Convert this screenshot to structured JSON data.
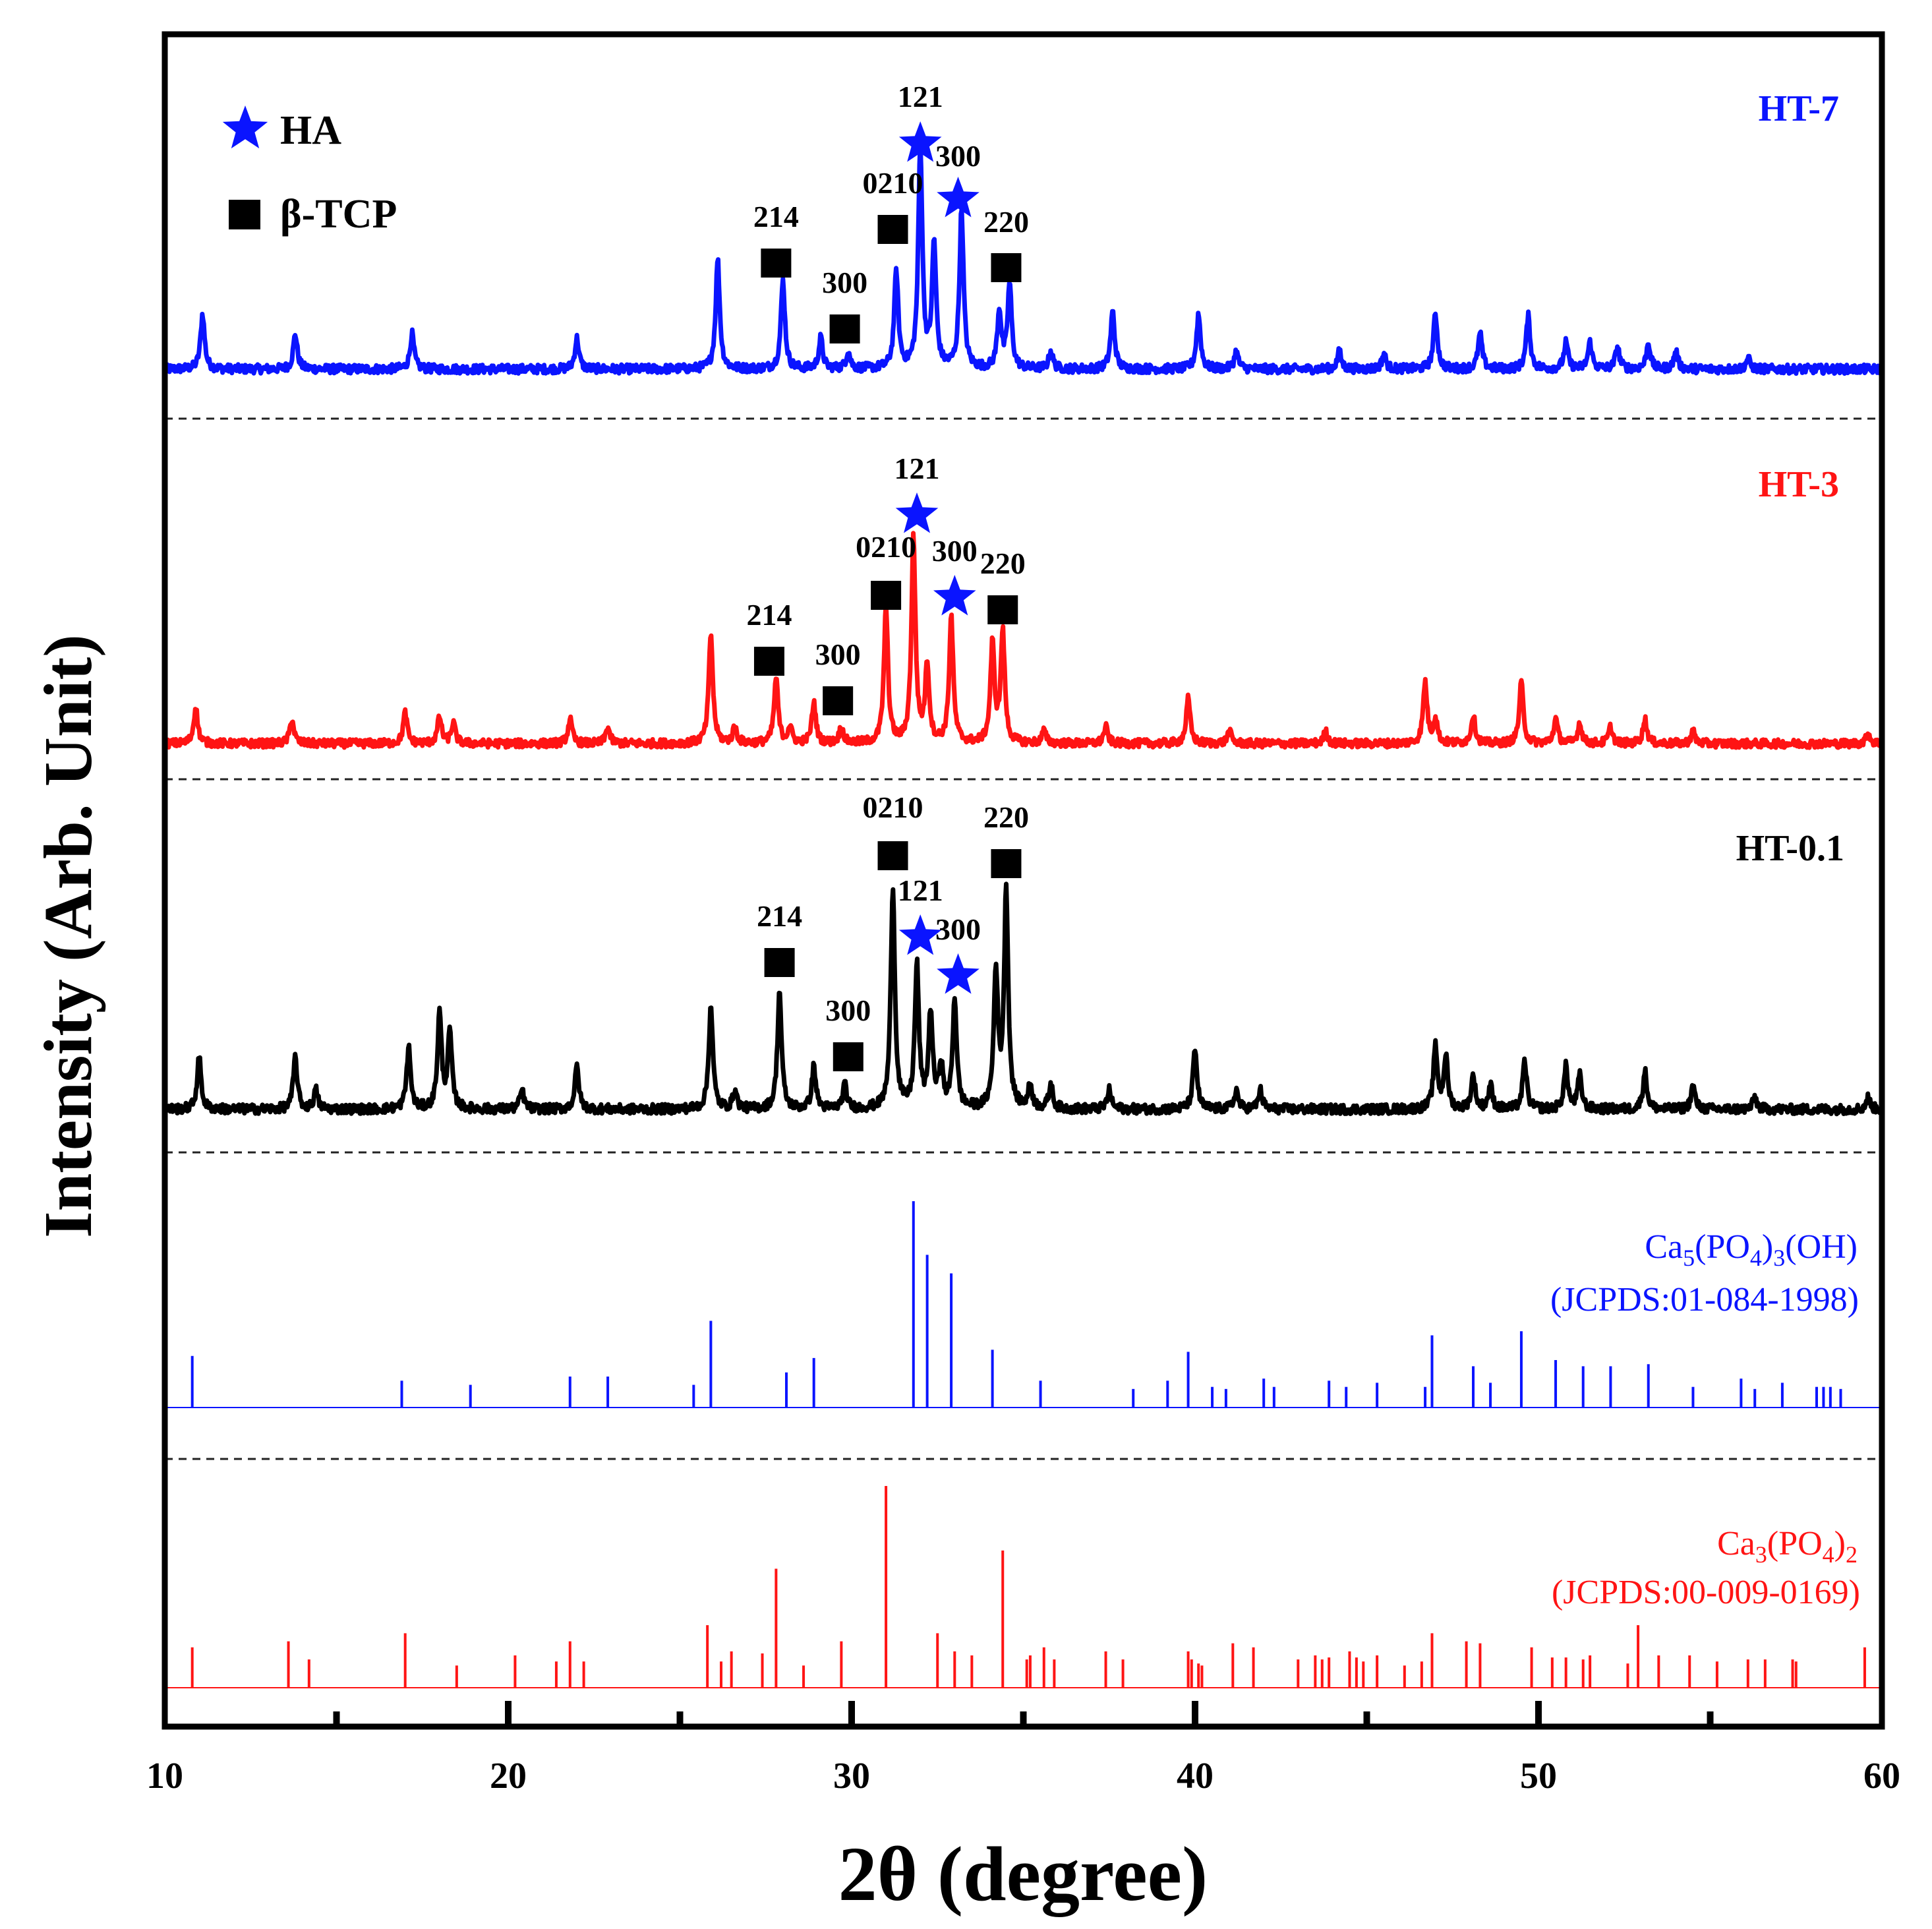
{
  "chart_data": {
    "type": "line",
    "title": "",
    "xlabel": "2θ (degree)",
    "ylabel": "Intensity (Arb. Unit)",
    "xlim": [
      10,
      60
    ],
    "xticks": [
      "10",
      "20",
      "30",
      "40",
      "50",
      "60"
    ],
    "legend": {
      "position": "top-left",
      "entries": [
        {
          "symbol": "star",
          "label": "HA",
          "color": "#0a14ff"
        },
        {
          "symbol": "square",
          "label": "β-TCP",
          "color": "#000000"
        }
      ]
    },
    "series": [
      {
        "name": "HT-7",
        "color": "#0a14ff",
        "baseline_offset": 0,
        "peaks": [
          [
            11.1,
            25
          ],
          [
            13.8,
            16
          ],
          [
            17.2,
            16
          ],
          [
            22.0,
            14
          ],
          [
            26.1,
            50
          ],
          [
            28.0,
            40
          ],
          [
            29.1,
            14
          ],
          [
            29.9,
            8
          ],
          [
            31.3,
            44
          ],
          [
            32.0,
            100
          ],
          [
            32.4,
            56
          ],
          [
            33.2,
            72
          ],
          [
            34.3,
            26
          ],
          [
            34.6,
            38
          ],
          [
            35.8,
            8
          ],
          [
            37.6,
            26
          ],
          [
            40.1,
            25
          ],
          [
            41.2,
            8
          ],
          [
            44.2,
            8
          ],
          [
            45.5,
            7
          ],
          [
            47.0,
            25
          ],
          [
            48.3,
            16
          ],
          [
            49.7,
            24
          ],
          [
            50.8,
            12
          ],
          [
            51.5,
            12
          ],
          [
            52.3,
            10
          ],
          [
            53.2,
            12
          ],
          [
            54.0,
            8
          ],
          [
            56.1,
            5
          ]
        ],
        "annotations": [
          {
            "phase": "HA",
            "hkl": "121",
            "x": 32.0
          },
          {
            "phase": "HA",
            "hkl": "300",
            "x": 33.1
          },
          {
            "phase": "β-TCP",
            "hkl": "214",
            "x": 27.8
          },
          {
            "phase": "β-TCP",
            "hkl": "300",
            "x": 29.8
          },
          {
            "phase": "β-TCP",
            "hkl": "0210",
            "x": 31.2
          },
          {
            "phase": "β-TCP",
            "hkl": "220",
            "x": 34.5
          }
        ]
      },
      {
        "name": "HT-3",
        "color": "#ff1414",
        "baseline_offset": 0,
        "peaks": [
          [
            10.9,
            18
          ],
          [
            13.7,
            12
          ],
          [
            17.0,
            15
          ],
          [
            18.0,
            13
          ],
          [
            18.4,
            10
          ],
          [
            21.8,
            12
          ],
          [
            22.9,
            8
          ],
          [
            25.9,
            54
          ],
          [
            26.6,
            8
          ],
          [
            27.8,
            32
          ],
          [
            28.2,
            8
          ],
          [
            28.9,
            20
          ],
          [
            29.7,
            8
          ],
          [
            31.0,
            66
          ],
          [
            31.8,
            100
          ],
          [
            32.2,
            38
          ],
          [
            32.9,
            62
          ],
          [
            34.1,
            48
          ],
          [
            34.4,
            54
          ],
          [
            35.6,
            6
          ],
          [
            37.4,
            8
          ],
          [
            39.8,
            22
          ],
          [
            41.0,
            6
          ],
          [
            43.8,
            6
          ],
          [
            46.7,
            30
          ],
          [
            47.0,
            12
          ],
          [
            48.1,
            14
          ],
          [
            49.5,
            30
          ],
          [
            50.5,
            12
          ],
          [
            51.2,
            10
          ],
          [
            52.1,
            8
          ],
          [
            53.1,
            12
          ],
          [
            54.5,
            6
          ],
          [
            59.6,
            5
          ]
        ],
        "annotations": [
          {
            "phase": "HA",
            "hkl": "121",
            "x": 31.9
          },
          {
            "phase": "HA",
            "hkl": "300",
            "x": 33.0
          },
          {
            "phase": "β-TCP",
            "hkl": "214",
            "x": 27.6
          },
          {
            "phase": "β-TCP",
            "hkl": "300",
            "x": 29.6
          },
          {
            "phase": "β-TCP",
            "hkl": "0210",
            "x": 31.0
          },
          {
            "phase": "β-TCP",
            "hkl": "220",
            "x": 34.4
          }
        ]
      },
      {
        "name": "HT-0.1",
        "color": "#000000",
        "baseline_offset": 0,
        "peaks": [
          [
            11.0,
            22
          ],
          [
            13.8,
            22
          ],
          [
            14.4,
            8
          ],
          [
            17.1,
            26
          ],
          [
            18.0,
            40
          ],
          [
            18.3,
            32
          ],
          [
            20.4,
            8
          ],
          [
            22.0,
            18
          ],
          [
            25.9,
            44
          ],
          [
            26.6,
            8
          ],
          [
            27.9,
            50
          ],
          [
            28.9,
            18
          ],
          [
            29.8,
            10
          ],
          [
            31.2,
            94
          ],
          [
            31.9,
            60
          ],
          [
            32.3,
            40
          ],
          [
            32.6,
            18
          ],
          [
            33.0,
            46
          ],
          [
            34.2,
            58
          ],
          [
            34.5,
            92
          ],
          [
            35.2,
            10
          ],
          [
            35.8,
            10
          ],
          [
            37.5,
            8
          ],
          [
            40.0,
            25
          ],
          [
            41.2,
            8
          ],
          [
            41.9,
            8
          ],
          [
            47.0,
            26
          ],
          [
            47.3,
            22
          ],
          [
            48.1,
            14
          ],
          [
            48.6,
            10
          ],
          [
            49.6,
            20
          ],
          [
            50.8,
            18
          ],
          [
            51.2,
            14
          ],
          [
            53.1,
            16
          ],
          [
            54.5,
            10
          ],
          [
            56.3,
            5
          ],
          [
            59.6,
            5
          ]
        ],
        "annotations": [
          {
            "phase": "β-TCP",
            "hkl": "0210",
            "x": 31.2
          },
          {
            "phase": "β-TCP",
            "hkl": "220",
            "x": 34.5
          },
          {
            "phase": "HA",
            "hkl": "121",
            "x": 32.0
          },
          {
            "phase": "HA",
            "hkl": "300",
            "x": 33.1
          },
          {
            "phase": "β-TCP",
            "hkl": "214",
            "x": 27.9
          },
          {
            "phase": "β-TCP",
            "hkl": "300",
            "x": 29.9
          }
        ]
      }
    ],
    "references": [
      {
        "formula_parts": [
          [
            "Ca",
            "base"
          ],
          [
            "5",
            "sub"
          ],
          [
            "(PO",
            "base"
          ],
          [
            "4",
            "sub"
          ],
          [
            ")",
            "base"
          ],
          [
            "3",
            "sub"
          ],
          [
            "(OH)",
            "base"
          ]
        ],
        "card": "(JCPDS:01-084-1998)",
        "color": "#0a14ff",
        "lines": [
          [
            10.8,
            25
          ],
          [
            16.9,
            13
          ],
          [
            18.9,
            11
          ],
          [
            21.8,
            15
          ],
          [
            22.9,
            15
          ],
          [
            25.4,
            11
          ],
          [
            25.9,
            42
          ],
          [
            28.1,
            17
          ],
          [
            28.9,
            24
          ],
          [
            31.8,
            100
          ],
          [
            32.2,
            74
          ],
          [
            32.9,
            65
          ],
          [
            34.1,
            28
          ],
          [
            35.5,
            13
          ],
          [
            38.2,
            9
          ],
          [
            39.2,
            13
          ],
          [
            39.8,
            27
          ],
          [
            40.5,
            10
          ],
          [
            40.9,
            9
          ],
          [
            42.0,
            14
          ],
          [
            42.3,
            10
          ],
          [
            43.9,
            13
          ],
          [
            44.4,
            10
          ],
          [
            45.3,
            12
          ],
          [
            46.7,
            10
          ],
          [
            46.9,
            35
          ],
          [
            48.1,
            20
          ],
          [
            48.6,
            12
          ],
          [
            49.5,
            37
          ],
          [
            50.5,
            23
          ],
          [
            51.3,
            20
          ],
          [
            52.1,
            20
          ],
          [
            53.2,
            21
          ],
          [
            54.5,
            10
          ],
          [
            55.9,
            14
          ],
          [
            56.3,
            9
          ],
          [
            57.1,
            12
          ],
          [
            58.1,
            10
          ],
          [
            58.3,
            10
          ],
          [
            58.5,
            10
          ],
          [
            58.8,
            9
          ],
          [
            60.0,
            13
          ]
        ]
      },
      {
        "formula_parts": [
          [
            "Ca",
            "base"
          ],
          [
            "3",
            "sub"
          ],
          [
            "(PO",
            "base"
          ],
          [
            "4",
            "sub"
          ],
          [
            ")",
            "base"
          ],
          [
            "2",
            "sub"
          ]
        ],
        "card": "(JCPDS:00-009-0169)",
        "color": "#ff1414",
        "lines": [
          [
            10.8,
            20
          ],
          [
            13.6,
            23
          ],
          [
            14.2,
            14
          ],
          [
            17.0,
            27
          ],
          [
            18.5,
            11
          ],
          [
            20.2,
            16
          ],
          [
            21.4,
            13
          ],
          [
            21.8,
            23
          ],
          [
            22.2,
            13
          ],
          [
            25.8,
            31
          ],
          [
            26.2,
            13
          ],
          [
            26.5,
            18
          ],
          [
            27.4,
            17
          ],
          [
            27.8,
            59
          ],
          [
            28.6,
            11
          ],
          [
            29.7,
            23
          ],
          [
            31.0,
            100
          ],
          [
            32.5,
            27
          ],
          [
            33.0,
            18
          ],
          [
            33.5,
            16
          ],
          [
            34.4,
            68
          ],
          [
            35.1,
            14
          ],
          [
            35.2,
            16
          ],
          [
            35.6,
            20
          ],
          [
            35.9,
            14
          ],
          [
            37.4,
            18
          ],
          [
            37.9,
            14
          ],
          [
            39.8,
            18
          ],
          [
            39.9,
            14
          ],
          [
            40.1,
            12
          ],
          [
            40.2,
            11
          ],
          [
            41.1,
            22
          ],
          [
            41.7,
            20
          ],
          [
            43.0,
            14
          ],
          [
            43.5,
            16
          ],
          [
            43.7,
            14
          ],
          [
            43.9,
            15
          ],
          [
            44.5,
            18
          ],
          [
            44.7,
            15
          ],
          [
            44.9,
            13
          ],
          [
            45.3,
            16
          ],
          [
            46.1,
            11
          ],
          [
            46.6,
            13
          ],
          [
            46.9,
            27
          ],
          [
            47.9,
            23
          ],
          [
            48.3,
            22
          ],
          [
            49.8,
            20
          ],
          [
            50.4,
            15
          ],
          [
            50.8,
            15
          ],
          [
            51.3,
            14
          ],
          [
            51.5,
            16
          ],
          [
            52.6,
            12
          ],
          [
            52.9,
            31
          ],
          [
            53.5,
            16
          ],
          [
            54.4,
            16
          ],
          [
            55.2,
            13
          ],
          [
            56.1,
            14
          ],
          [
            56.6,
            14
          ],
          [
            57.4,
            14
          ],
          [
            57.5,
            13
          ],
          [
            59.5,
            20
          ]
        ]
      }
    ]
  }
}
